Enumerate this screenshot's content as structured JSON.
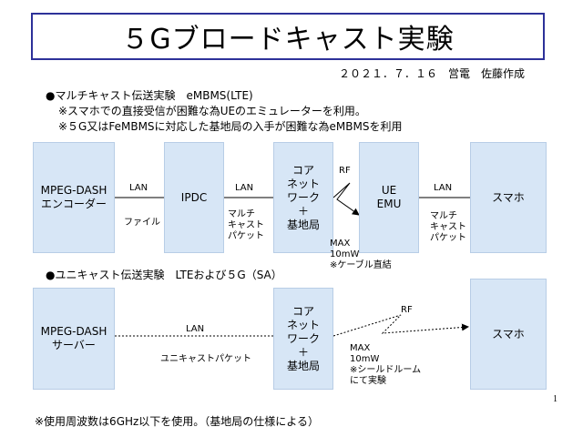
{
  "title": "５Gブロードキャスト実験",
  "date_author": "２０２１．７．１６　営電　佐藤作成",
  "section1": {
    "heading": "●マルチキャスト伝送実験　eMBMS(LTE)",
    "notes": [
      "※スマホでの直接受信が困難な為UEのエミュレーターを利用。",
      "※５G又はFeMBMSに対応した基地局の入手が困難な為eMBMSを利用"
    ],
    "boxes": {
      "mpeg": "MPEG-DASH\nエンコーダー",
      "ipdc": "IPDC",
      "core": "コア\nネット\nワーク\n＋\n基地局",
      "ue": "UE\nEMU",
      "phone": "スマホ"
    },
    "labels": {
      "lan1": "LAN",
      "file": "ファイル",
      "lan2": "LAN",
      "multicast1": "マルチ\nキャスト\nパケット",
      "rf": "RF",
      "rf_note": "MAX\n10mW\n※ケーブル直結",
      "lan3": "LAN",
      "multicast2": "マルチ\nキャスト\nパケット"
    }
  },
  "section2": {
    "heading": "●ユニキャスト伝送実験　LTEおよび５G（SA）",
    "boxes": {
      "mpeg": "MPEG-DASH\nサーバー",
      "core": "コア\nネット\nワーク\n＋\n基地局",
      "phone": "スマホ"
    },
    "labels": {
      "lan": "LAN",
      "unicast": "ユニキャストパケット",
      "rf": "RF",
      "rf_note": "MAX\n10mW\n※シールドルーム\nにて実験"
    }
  },
  "page_number": "1",
  "footer": "※使用周波数は6GHz以下を使用。（基地局の仕様による）",
  "colors": {
    "box_fill": "#d7e6f6",
    "title_border": "#2d3199"
  }
}
